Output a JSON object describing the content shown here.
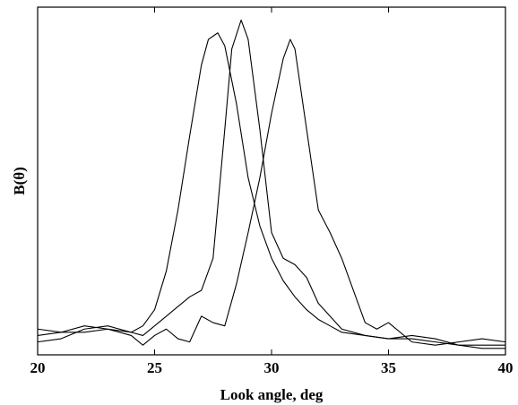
{
  "chart_data": {
    "type": "line",
    "title": "",
    "xlabel": "Look angle, deg",
    "ylabel": "B(θ)",
    "xlim": [
      20,
      40
    ],
    "ylim": [
      0,
      1.08
    ],
    "xticks": [
      20,
      25,
      30,
      35,
      40
    ],
    "yticks_shown": false,
    "grid": false,
    "legend": "none",
    "series": [
      {
        "x": [
          20,
          21,
          22,
          23,
          24,
          24.5,
          25,
          25.5,
          26,
          26.5,
          27,
          27.3,
          27.7,
          28,
          28.5,
          29,
          29.5,
          30,
          30.5,
          31,
          31.5,
          32,
          32.5,
          33,
          34,
          35,
          36,
          37,
          38,
          39,
          40
        ],
        "y": [
          0.06,
          0.07,
          0.09,
          0.08,
          0.07,
          0.09,
          0.14,
          0.26,
          0.45,
          0.68,
          0.9,
          0.98,
          1.0,
          0.96,
          0.78,
          0.55,
          0.4,
          0.3,
          0.23,
          0.18,
          0.14,
          0.11,
          0.09,
          0.07,
          0.06,
          0.05,
          0.05,
          0.04,
          0.03,
          0.03,
          0.03
        ]
      },
      {
        "x": [
          20,
          21,
          22,
          23,
          24,
          24.5,
          25,
          25.5,
          26,
          26.5,
          27,
          27.5,
          28,
          28.3,
          28.7,
          29,
          29.5,
          30,
          30.5,
          31,
          31.5,
          32,
          32.5,
          33,
          34,
          35,
          36,
          37,
          38,
          39,
          40
        ],
        "y": [
          0.04,
          0.05,
          0.08,
          0.09,
          0.07,
          0.06,
          0.09,
          0.12,
          0.15,
          0.18,
          0.2,
          0.3,
          0.7,
          0.95,
          1.04,
          0.98,
          0.7,
          0.38,
          0.3,
          0.28,
          0.24,
          0.16,
          0.12,
          0.08,
          0.06,
          0.05,
          0.06,
          0.05,
          0.03,
          0.02,
          0.02
        ]
      },
      {
        "x": [
          20,
          21,
          22,
          23,
          24,
          24.5,
          25,
          25.5,
          26,
          26.5,
          27,
          27.5,
          28,
          28.5,
          29,
          29.5,
          30,
          30.5,
          30.8,
          31,
          31.5,
          32,
          32.5,
          33,
          33.5,
          34,
          34.5,
          35,
          36,
          37,
          38,
          39,
          40
        ],
        "y": [
          0.08,
          0.07,
          0.07,
          0.08,
          0.06,
          0.03,
          0.06,
          0.08,
          0.05,
          0.04,
          0.12,
          0.1,
          0.09,
          0.22,
          0.38,
          0.55,
          0.75,
          0.92,
          0.98,
          0.95,
          0.7,
          0.45,
          0.38,
          0.3,
          0.2,
          0.1,
          0.08,
          0.1,
          0.04,
          0.03,
          0.04,
          0.05,
          0.04
        ]
      }
    ]
  }
}
